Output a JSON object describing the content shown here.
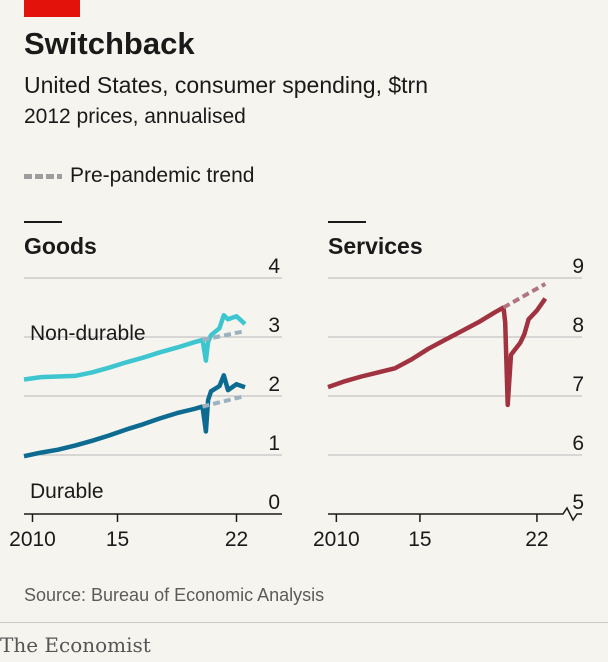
{
  "title": "Switchback",
  "subtitle": "United States, consumer spending, $trn",
  "subtitle2": "2012 prices, annualised",
  "legend_label": "Pre-pandemic trend",
  "source": "Source: Bureau of Economic Analysis",
  "brand": "The Economist",
  "colors": {
    "non_durable": "#3ec6d0",
    "durable": "#0d6a91",
    "services": "#a1323f",
    "trend_goods": "#9bb3c0",
    "trend_services": "#b0767f",
    "accent": "#e3120b"
  },
  "chart_data": [
    {
      "type": "line",
      "title": "Goods",
      "ylim": [
        0,
        4
      ],
      "yticks": [
        "0",
        "1",
        "2",
        "3",
        "4"
      ],
      "xlim": [
        2009.5,
        2023.5
      ],
      "xticks": [
        "2010",
        "15",
        "22"
      ],
      "xtick_values": [
        2010,
        2015,
        2022
      ],
      "series": [
        {
          "name": "Non-durable",
          "x": [
            2009.5,
            2010.5,
            2011.5,
            2012.5,
            2013.5,
            2014.5,
            2015.5,
            2016.5,
            2017.5,
            2018.5,
            2019.5,
            2020.0,
            2020.2,
            2020.33,
            2020.5,
            2021.0,
            2021.25,
            2021.5,
            2022.0,
            2022.5
          ],
          "y": [
            2.28,
            2.32,
            2.33,
            2.34,
            2.4,
            2.48,
            2.57,
            2.65,
            2.74,
            2.82,
            2.91,
            2.95,
            2.6,
            2.92,
            3.03,
            3.15,
            3.37,
            3.3,
            3.35,
            3.22
          ]
        },
        {
          "name": "Durable",
          "x": [
            2009.5,
            2010.5,
            2011.5,
            2012.5,
            2013.5,
            2014.5,
            2015.5,
            2016.5,
            2017.5,
            2018.5,
            2019.5,
            2020.0,
            2020.2,
            2020.33,
            2020.5,
            2021.0,
            2021.25,
            2021.5,
            2022.0,
            2022.5
          ],
          "y": [
            0.98,
            1.04,
            1.09,
            1.16,
            1.24,
            1.33,
            1.43,
            1.52,
            1.62,
            1.71,
            1.78,
            1.82,
            1.4,
            1.93,
            2.08,
            2.17,
            2.35,
            2.1,
            2.2,
            2.15
          ]
        },
        {
          "name": "Pre-pandemic trend (non-durable)",
          "x": [
            2020.0,
            2022.5
          ],
          "y": [
            2.95,
            3.1
          ]
        },
        {
          "name": "Pre-pandemic trend (durable)",
          "x": [
            2020.0,
            2022.5
          ],
          "y": [
            1.82,
            2.0
          ]
        }
      ],
      "annotations": [
        "Non-durable",
        "Durable"
      ]
    },
    {
      "type": "line",
      "title": "Services",
      "ylim": [
        5,
        9
      ],
      "yticks": [
        "5",
        "6",
        "7",
        "8",
        "9"
      ],
      "axis_break": true,
      "xlim": [
        2009.5,
        2023.5
      ],
      "xticks": [
        "2010",
        "15",
        "22"
      ],
      "xtick_values": [
        2010,
        2015,
        2022
      ],
      "series": [
        {
          "name": "Services",
          "x": [
            2009.5,
            2010.5,
            2011.5,
            2012.5,
            2013.5,
            2014.5,
            2015.5,
            2016.5,
            2017.5,
            2018.5,
            2019.5,
            2020.0,
            2020.1,
            2020.25,
            2020.45,
            2021.0,
            2021.25,
            2021.5,
            2022.0,
            2022.5
          ],
          "y": [
            7.15,
            7.25,
            7.33,
            7.4,
            7.47,
            7.62,
            7.8,
            7.95,
            8.1,
            8.25,
            8.42,
            8.5,
            8.25,
            6.85,
            7.7,
            7.9,
            8.05,
            8.3,
            8.45,
            8.65
          ]
        },
        {
          "name": "Pre-pandemic trend",
          "x": [
            2020.0,
            2022.5
          ],
          "y": [
            8.5,
            8.9
          ]
        }
      ]
    }
  ]
}
